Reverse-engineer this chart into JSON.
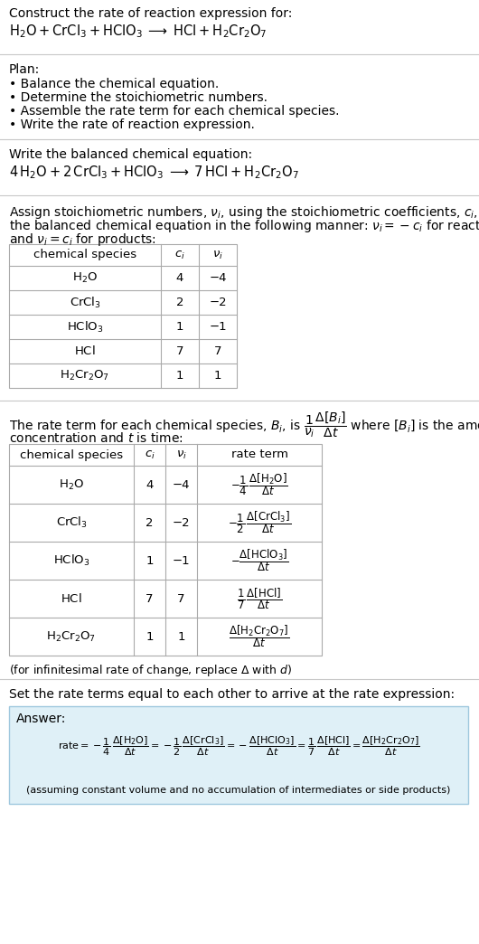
{
  "title_line1": "Construct the rate of reaction expression for:",
  "title_line2_latex": "$\\mathrm{H_2O + CrCl_3 + HClO_3 \\;\\longrightarrow\\; HCl + H_2Cr_2O_7}$",
  "plan_header": "Plan:",
  "plan_items": [
    "• Balance the chemical equation.",
    "• Determine the stoichiometric numbers.",
    "• Assemble the rate term for each chemical species.",
    "• Write the rate of reaction expression."
  ],
  "balanced_header": "Write the balanced chemical equation:",
  "balanced_eq": "$\\mathrm{4\\,H_2O + 2\\,CrCl_3 + HClO_3 \\;\\longrightarrow\\; 7\\,HCl + H_2Cr_2O_7}$",
  "stoich_text1": "Assign stoichiometric numbers, $\\nu_i$, using the stoichiometric coefficients, $c_i$, from",
  "stoich_text2": "the balanced chemical equation in the following manner: $\\nu_i = -c_i$ for reactants",
  "stoich_text3": "and $\\nu_i = c_i$ for products:",
  "table1_headers": [
    "chemical species",
    "$c_i$",
    "$\\nu_i$"
  ],
  "table1_rows": [
    [
      "$\\mathrm{H_2O}$",
      "4",
      "−4"
    ],
    [
      "$\\mathrm{CrCl_3}$",
      "2",
      "−2"
    ],
    [
      "$\\mathrm{HClO_3}$",
      "1",
      "−1"
    ],
    [
      "$\\mathrm{HCl}$",
      "7",
      "7"
    ],
    [
      "$\\mathrm{H_2Cr_2O_7}$",
      "1",
      "1"
    ]
  ],
  "rate_text1": "The rate term for each chemical species, $B_i$, is $\\dfrac{1}{\\nu_i}\\dfrac{\\Delta[B_i]}{\\Delta t}$ where $[B_i]$ is the amount",
  "rate_text2": "concentration and $t$ is time:",
  "table2_headers": [
    "chemical species",
    "$c_i$",
    "$\\nu_i$",
    "rate term"
  ],
  "table2_rows": [
    [
      "$\\mathrm{H_2O}$",
      "4",
      "−4",
      "$-\\dfrac{1}{4}\\,\\dfrac{\\Delta[\\mathrm{H_2O}]}{\\Delta t}$"
    ],
    [
      "$\\mathrm{CrCl_3}$",
      "2",
      "−2",
      "$-\\dfrac{1}{2}\\,\\dfrac{\\Delta[\\mathrm{CrCl_3}]}{\\Delta t}$"
    ],
    [
      "$\\mathrm{HClO_3}$",
      "1",
      "−1",
      "$-\\dfrac{\\Delta[\\mathrm{HClO_3}]}{\\Delta t}$"
    ],
    [
      "$\\mathrm{HCl}$",
      "7",
      "7",
      "$\\dfrac{1}{7}\\,\\dfrac{\\Delta[\\mathrm{HCl}]}{\\Delta t}$"
    ],
    [
      "$\\mathrm{H_2Cr_2O_7}$",
      "1",
      "1",
      "$\\dfrac{\\Delta[\\mathrm{H_2Cr_2O_7}]}{\\Delta t}$"
    ]
  ],
  "infinitesimal_note": "(for infinitesimal rate of change, replace Δ with $d$)",
  "set_equal_text": "Set the rate terms equal to each other to arrive at the rate expression:",
  "answer_label": "Answer:",
  "answer_box_color": "#dff0f7",
  "answer_border_color": "#9fc8de",
  "final_note": "(assuming constant volume and no accumulation of intermediates or side products)",
  "bg_color": "#ffffff",
  "text_color": "#000000",
  "table_border_color": "#aaaaaa",
  "font_size": 10.0,
  "small_font_size": 9.5
}
